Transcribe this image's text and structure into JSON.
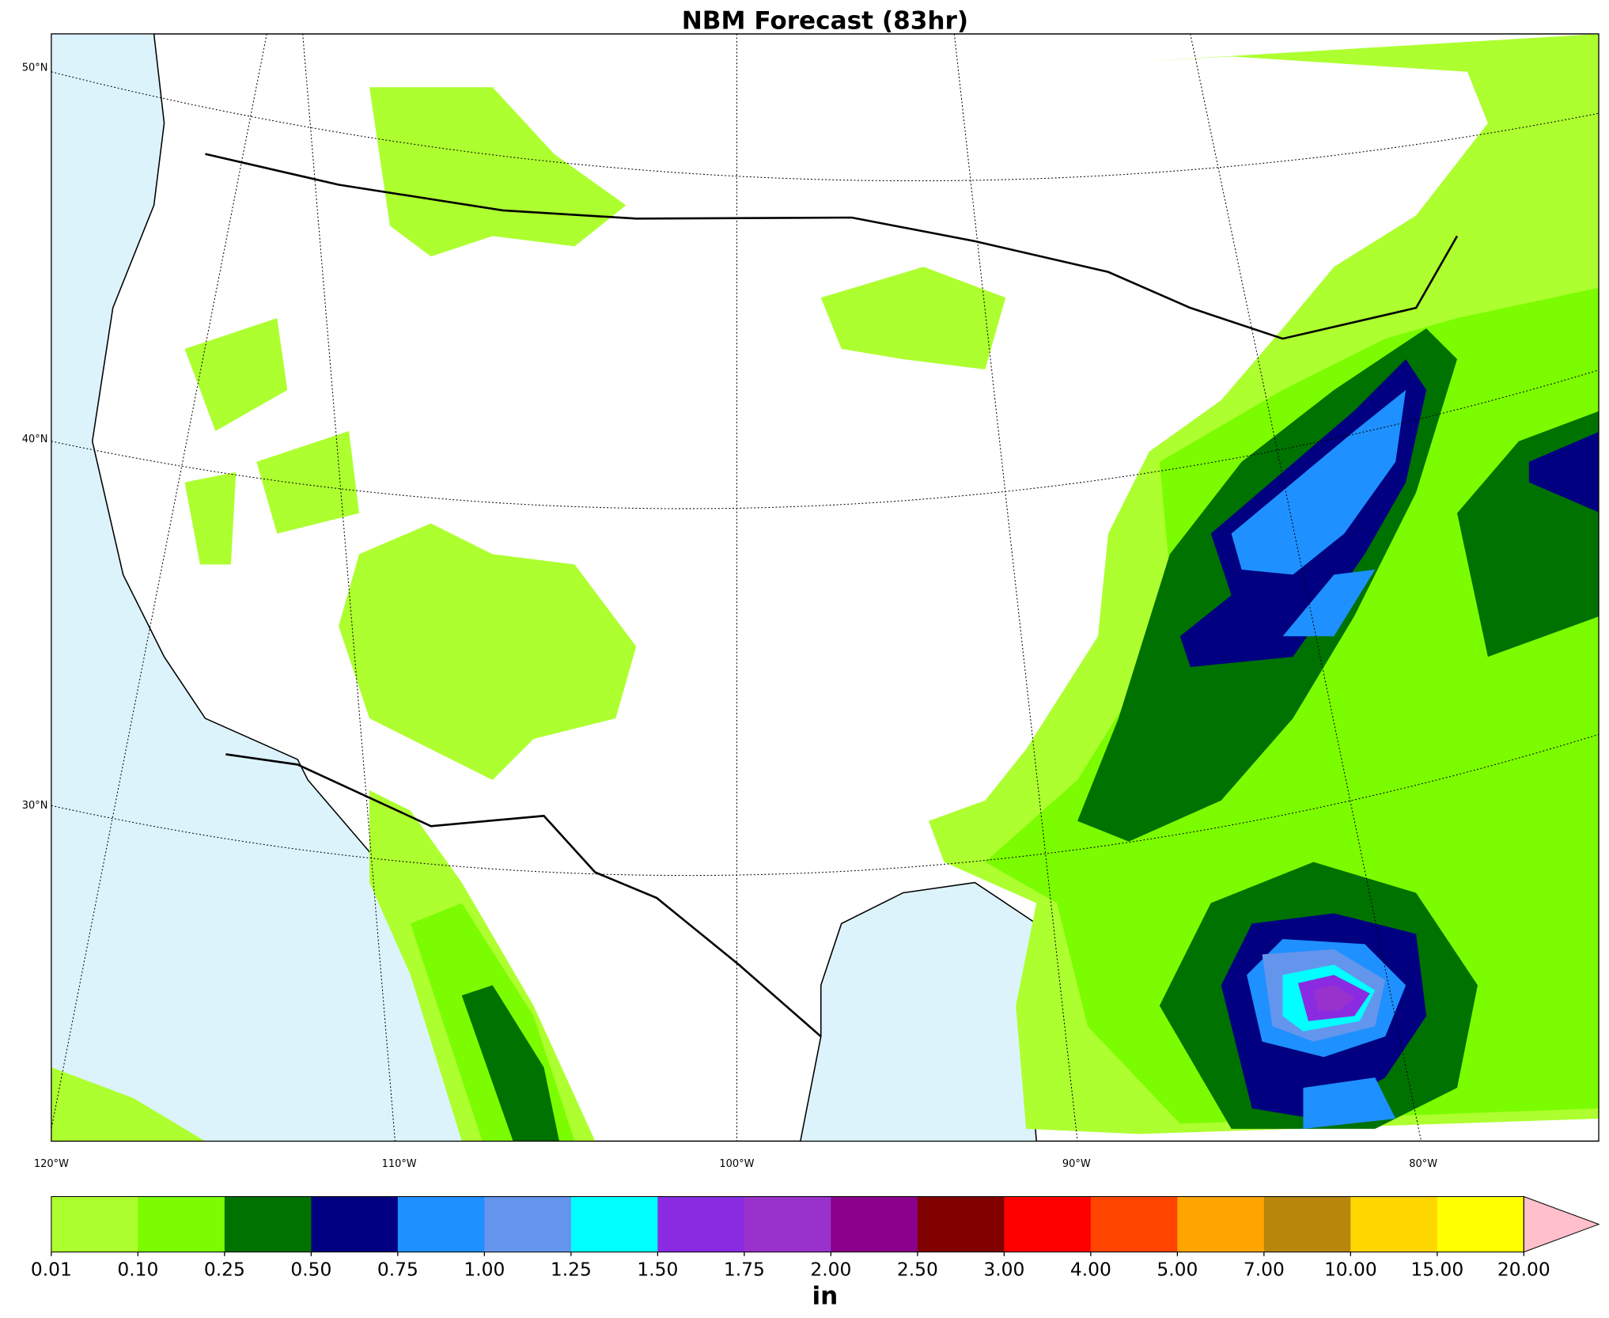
{
  "title": "NBM Forecast (83hr)",
  "map": {
    "lat_labels": [
      "50°N",
      "40°N",
      "30°N"
    ],
    "lon_labels": [
      "120°W",
      "110°W",
      "100°W",
      "90°W",
      "80°W"
    ]
  },
  "colorbar": {
    "ticks": [
      0.01,
      {
        "value": 0.1,
        "label": "0.10"
      },
      0.25,
      {
        "value": 0.5,
        "label": "0.50"
      },
      0.75,
      {
        "value": 1,
        "label": "1.00"
      },
      1.25,
      {
        "value": 1.5,
        "label": "1.50"
      },
      1.75,
      {
        "value": 2,
        "label": "2.00"
      },
      {
        "value": 2.5,
        "label": "2.50"
      },
      {
        "value": 3,
        "label": "3.00"
      },
      {
        "value": 4,
        "label": "4.00"
      },
      {
        "value": 5,
        "label": "5.00"
      },
      {
        "value": 7,
        "label": "7.00"
      },
      {
        "value": 10,
        "label": "10.00"
      },
      {
        "value": 15,
        "label": "15.00"
      },
      {
        "value": 20,
        "label": "20.00"
      }
    ],
    "colors": [
      "#adff2f",
      "#7cfc00",
      "#007200",
      "#000080",
      "#1e90ff",
      "#6495ed",
      "#00ffff",
      "#8a2be2",
      "#9932cc",
      "#8b008b",
      "#800000",
      "#ff0000",
      "#ff4500",
      "#ffa500",
      "#b8860b",
      "#ffd700",
      "#ffff00"
    ],
    "extend_color": "#ffc0cb",
    "label": "in"
  }
}
